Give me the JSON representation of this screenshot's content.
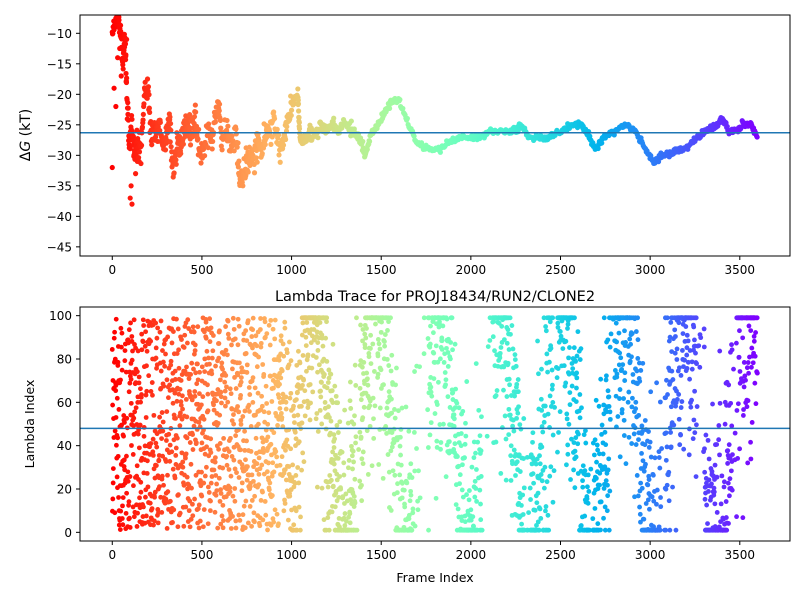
{
  "chart_data": [
    {
      "type": "scatter",
      "title": "",
      "xlabel": "",
      "ylabel": "ΔG (kT)",
      "ylabel_parts": {
        "delta": "Δ",
        "var": "G",
        "unit": " (kT)"
      },
      "xlim": [
        -180,
        3780
      ],
      "ylim": [
        -46.5,
        -7
      ],
      "xticks": [
        0,
        500,
        1000,
        1500,
        2000,
        2500,
        3000,
        3500
      ],
      "yticks": [
        -10,
        -15,
        -20,
        -25,
        -30,
        -35,
        -40,
        -45
      ],
      "xtick_labels": [
        "0",
        "500",
        "1000",
        "1500",
        "2000",
        "2500",
        "3000",
        "3500"
      ],
      "ytick_labels": [
        "−10",
        "−15",
        "−20",
        "−25",
        "−30",
        "−35",
        "−40",
        "−45"
      ],
      "colormap": "rainbow (frame index → hue)",
      "series": [
        {
          "points_per_segment": 12,
          "data": [
            [
              0,
              -10
            ],
            [
              20,
              -7
            ],
            [
              35,
              -8
            ],
            [
              45,
              -10
            ],
            [
              60,
              -15
            ],
            [
              70,
              -10
            ],
            [
              80,
              -20
            ],
            [
              95,
              -28
            ],
            [
              110,
              -25
            ],
            [
              125,
              -30
            ],
            [
              140,
              -27
            ],
            [
              160,
              -29
            ],
            [
              180,
              -20
            ],
            [
              200,
              -19
            ],
            [
              220,
              -27
            ],
            [
              240,
              -26
            ],
            [
              260,
              -25
            ],
            [
              280,
              -28
            ],
            [
              300,
              -27
            ],
            [
              320,
              -24
            ],
            [
              340,
              -33
            ],
            [
              360,
              -28
            ],
            [
              380,
              -30
            ],
            [
              400,
              -26
            ],
            [
              420,
              -25
            ],
            [
              440,
              -27
            ],
            [
              460,
              -24
            ],
            [
              480,
              -28
            ],
            [
              500,
              -30
            ],
            [
              530,
              -26
            ],
            [
              560,
              -28
            ],
            [
              590,
              -21
            ],
            [
              610,
              -27
            ],
            [
              640,
              -26
            ],
            [
              660,
              -29
            ],
            [
              690,
              -26
            ],
            [
              710,
              -34
            ],
            [
              730,
              -33
            ],
            [
              750,
              -31
            ],
            [
              770,
              -30
            ],
            [
              790,
              -31
            ],
            [
              810,
              -28
            ],
            [
              830,
              -29
            ],
            [
              850,
              -27
            ],
            [
              870,
              -26
            ],
            [
              900,
              -25
            ],
            [
              930,
              -29
            ],
            [
              950,
              -28
            ],
            [
              970,
              -25
            ],
            [
              990,
              -23
            ],
            [
              1010,
              -21
            ],
            [
              1035,
              -20
            ],
            [
              1045,
              -27
            ],
            [
              1070,
              -28
            ],
            [
              1100,
              -26
            ],
            [
              1130,
              -27
            ],
            [
              1160,
              -25
            ],
            [
              1200,
              -26
            ],
            [
              1230,
              -25
            ],
            [
              1260,
              -26
            ],
            [
              1300,
              -25
            ],
            [
              1340,
              -26
            ],
            [
              1380,
              -27
            ],
            [
              1410,
              -30
            ],
            [
              1440,
              -27
            ],
            [
              1480,
              -25
            ],
            [
              1520,
              -23
            ],
            [
              1560,
              -21
            ],
            [
              1600,
              -21
            ],
            [
              1650,
              -25
            ],
            [
              1700,
              -28
            ],
            [
              1760,
              -29
            ],
            [
              1820,
              -29
            ],
            [
              1880,
              -28
            ],
            [
              1940,
              -27
            ],
            [
              2000,
              -27
            ],
            [
              2060,
              -27
            ],
            [
              2120,
              -26
            ],
            [
              2180,
              -26
            ],
            [
              2240,
              -26
            ],
            [
              2280,
              -25
            ],
            [
              2320,
              -27
            ],
            [
              2380,
              -27
            ],
            [
              2440,
              -27
            ],
            [
              2500,
              -26
            ],
            [
              2560,
              -25
            ],
            [
              2620,
              -25
            ],
            [
              2660,
              -27
            ],
            [
              2700,
              -29
            ],
            [
              2740,
              -27
            ],
            [
              2800,
              -26
            ],
            [
              2870,
              -25
            ],
            [
              2920,
              -26
            ],
            [
              2970,
              -29
            ],
            [
              3020,
              -31
            ],
            [
              3060,
              -30
            ],
            [
              3100,
              -30
            ],
            [
              3140,
              -29
            ],
            [
              3200,
              -29
            ],
            [
              3260,
              -27
            ],
            [
              3320,
              -26
            ],
            [
              3370,
              -25
            ],
            [
              3400,
              -24
            ],
            [
              3440,
              -26
            ],
            [
              3480,
              -26
            ],
            [
              3520,
              -25
            ],
            [
              3560,
              -25
            ],
            [
              3600,
              -27
            ]
          ]
        }
      ],
      "hline": {
        "y": -26.3,
        "color": "#1f77b4"
      },
      "extra_points": [
        [
          0,
          -32
        ],
        [
          10,
          -19
        ],
        [
          20,
          -22
        ],
        [
          30,
          -14
        ],
        [
          50,
          -17
        ],
        [
          80,
          -11
        ],
        [
          100,
          -37
        ],
        [
          105,
          -35
        ],
        [
          110,
          -38
        ],
        [
          130,
          -33
        ],
        [
          140,
          -31
        ],
        [
          150,
          -31
        ]
      ]
    },
    {
      "type": "scatter",
      "title": "Lambda Trace for PROJ18434/RUN2/CLONE2",
      "xlabel": "Frame Index",
      "ylabel": "Lambda Index",
      "xlim": [
        -180,
        3780
      ],
      "ylim": [
        -4,
        104
      ],
      "xticks": [
        0,
        500,
        1000,
        1500,
        2000,
        2500,
        3000,
        3500
      ],
      "yticks": [
        0,
        20,
        40,
        60,
        80,
        100
      ],
      "xtick_labels": [
        "0",
        "500",
        "1000",
        "1500",
        "2000",
        "2500",
        "3000",
        "3500"
      ],
      "ytick_labels": [
        "0",
        "20",
        "40",
        "60",
        "80",
        "100"
      ],
      "colormap": "rainbow (frame index → hue)",
      "point_count": 3600,
      "value_range": [
        1,
        99
      ],
      "hline": {
        "y": 48,
        "color": "#1f77b4"
      },
      "low_density_gaps": [
        [
          1360,
          1380
        ],
        [
          1680,
          1760
        ],
        [
          2060,
          2120
        ],
        [
          2300,
          2330
        ],
        [
          2460,
          2480
        ],
        [
          2660,
          2680
        ],
        [
          2780,
          2800
        ],
        [
          3060,
          3080
        ],
        [
          3260,
          3300
        ],
        [
          3460,
          3480
        ]
      ]
    }
  ]
}
